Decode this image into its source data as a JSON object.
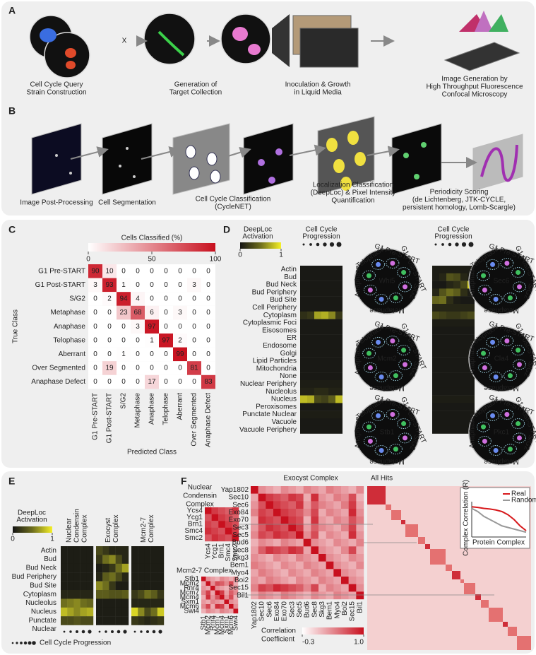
{
  "panel_a": {
    "label": "A",
    "cross": "X",
    "steps": [
      [
        "Cell Cycle Query",
        "Strain Construction"
      ],
      [
        "Generation of",
        "Target Collection"
      ],
      [
        "Inoculation & Growth",
        "in Liquid Media"
      ],
      [
        "Image Generation by",
        "High Throughput Fluorescence",
        "Confocal Microscopy"
      ]
    ]
  },
  "panel_b": {
    "label": "B",
    "steps": [
      [
        "Image Post-Processing"
      ],
      [
        "Cell Segmentation"
      ],
      [
        "Cell Cycle Classification",
        "(CycleNET)"
      ],
      [
        "Localization Classification",
        "(DeepLoc) & Pixel Intensity",
        "Quantification"
      ],
      [
        "Periodicity Scoring",
        "(de Lichtenberg, JTK-CYCLE,",
        "persistent homology, Lomb-Scargle)"
      ]
    ]
  },
  "panel_c": {
    "label": "C",
    "colorbar_title": "Cells Classified (%)",
    "colorbar_ticks": [
      0,
      50,
      100
    ],
    "color_range": [
      0,
      100
    ],
    "y_label": "True Class",
    "x_label": "Predicted Class",
    "classes": [
      "G1 Pre-START",
      "G1 Post-START",
      "S/G2",
      "Metaphase",
      "Anaphase",
      "Telophase",
      "Aberrant",
      "Over Segmented",
      "Anaphase Defect"
    ],
    "matrix": [
      [
        90,
        10,
        0,
        0,
        0,
        0,
        0,
        0,
        0
      ],
      [
        3,
        93,
        1,
        0,
        0,
        0,
        0,
        3,
        0
      ],
      [
        0,
        2,
        94,
        4,
        0,
        0,
        0,
        0,
        0
      ],
      [
        0,
        0,
        23,
        68,
        6,
        0,
        3,
        0,
        0
      ],
      [
        0,
        0,
        0,
        3,
        97,
        0,
        0,
        0,
        0
      ],
      [
        0,
        0,
        0,
        0,
        1,
        97,
        2,
        0,
        0
      ],
      [
        0,
        0,
        1,
        0,
        0,
        0,
        99,
        0,
        0
      ],
      [
        0,
        19,
        0,
        0,
        0,
        0,
        0,
        81,
        0
      ],
      [
        0,
        0,
        0,
        0,
        17,
        0,
        0,
        0,
        83
      ]
    ]
  },
  "panel_d": {
    "label": "D",
    "colorbar_lines": [
      "DeepLoc",
      "Activation"
    ],
    "colorbar_ticks": [
      0,
      1
    ],
    "header_lines": [
      "Cell Cycle",
      "Progression"
    ],
    "localizations": [
      "Actin",
      "Bud",
      "Bud Neck",
      "Bud Periphery",
      "Bud Site",
      "Cell Periphery",
      "Cytoplasm",
      "Cytoplasmic Foci",
      "Eisosomes",
      "ER",
      "Endosome",
      "Golgi",
      "Lipid Particles",
      "Mitochondria",
      "None",
      "Nuclear Periphery",
      "Nucleolus",
      "Nucleus",
      "Peroxisomes",
      "Punctate Nuclear",
      "Vacuole",
      "Vacuole Periphery"
    ],
    "heatmaps": [
      [
        [
          0.03,
          0.03,
          0.03,
          0.03,
          0.03,
          0.03
        ],
        [
          0.03,
          0.03,
          0.03,
          0.03,
          0.03,
          0.03
        ],
        [
          0.03,
          0.03,
          0.03,
          0.03,
          0.03,
          0.03
        ],
        [
          0.03,
          0.03,
          0.03,
          0.03,
          0.03,
          0.03
        ],
        [
          0.03,
          0.03,
          0.03,
          0.03,
          0.03,
          0.03
        ],
        [
          0.03,
          0.03,
          0.03,
          0.03,
          0.03,
          0.03
        ],
        [
          0.15,
          0.2,
          0.7,
          0.75,
          0.6,
          0.2
        ],
        [
          0.03,
          0.03,
          0.03,
          0.03,
          0.03,
          0.03
        ],
        [
          0.03,
          0.03,
          0.03,
          0.03,
          0.03,
          0.03
        ],
        [
          0.03,
          0.03,
          0.03,
          0.03,
          0.03,
          0.03
        ],
        [
          0.03,
          0.03,
          0.03,
          0.03,
          0.03,
          0.03
        ],
        [
          0.03,
          0.03,
          0.03,
          0.03,
          0.03,
          0.03
        ],
        [
          0.03,
          0.03,
          0.03,
          0.03,
          0.03,
          0.03
        ],
        [
          0.03,
          0.03,
          0.03,
          0.03,
          0.03,
          0.03
        ],
        [
          0.03,
          0.03,
          0.03,
          0.03,
          0.03,
          0.03
        ],
        [
          0.05,
          0.05,
          0.05,
          0.05,
          0.05,
          0.05
        ],
        [
          0.08,
          0.08,
          0.12,
          0.12,
          0.08,
          0.08
        ],
        [
          0.8,
          0.75,
          0.3,
          0.25,
          0.4,
          0.8
        ],
        [
          0.03,
          0.03,
          0.03,
          0.03,
          0.03,
          0.03
        ],
        [
          0.05,
          0.05,
          0.05,
          0.05,
          0.05,
          0.05
        ],
        [
          0.03,
          0.03,
          0.03,
          0.03,
          0.03,
          0.03
        ],
        [
          0.03,
          0.03,
          0.03,
          0.03,
          0.03,
          0.03
        ]
      ],
      [
        [
          0.05,
          0.05,
          0.05,
          0.05,
          0.05,
          0.05
        ],
        [
          0.05,
          0.1,
          0.35,
          0.3,
          0.1,
          0.05
        ],
        [
          0.03,
          0.03,
          0.1,
          0.15,
          0.3,
          0.9
        ],
        [
          0.1,
          0.35,
          0.5,
          0.4,
          0.15,
          0.05
        ],
        [
          0.45,
          0.5,
          0.15,
          0.05,
          0.03,
          0.03
        ],
        [
          0.1,
          0.1,
          0.1,
          0.1,
          0.1,
          0.1
        ],
        [
          0.3,
          0.25,
          0.2,
          0.2,
          0.25,
          0.3
        ],
        [
          0.05,
          0.05,
          0.05,
          0.05,
          0.05,
          0.05
        ],
        [
          0.03,
          0.03,
          0.03,
          0.03,
          0.03,
          0.03
        ],
        [
          0.03,
          0.03,
          0.03,
          0.03,
          0.03,
          0.03
        ],
        [
          0.03,
          0.03,
          0.03,
          0.03,
          0.03,
          0.03
        ],
        [
          0.03,
          0.03,
          0.03,
          0.03,
          0.03,
          0.03
        ],
        [
          0.03,
          0.03,
          0.03,
          0.03,
          0.03,
          0.03
        ],
        [
          0.03,
          0.03,
          0.03,
          0.03,
          0.03,
          0.03
        ],
        [
          0.03,
          0.03,
          0.03,
          0.03,
          0.03,
          0.03
        ],
        [
          0.03,
          0.03,
          0.03,
          0.03,
          0.03,
          0.03
        ],
        [
          0.03,
          0.03,
          0.03,
          0.03,
          0.03,
          0.03
        ],
        [
          0.05,
          0.05,
          0.05,
          0.05,
          0.05,
          0.05
        ],
        [
          0.03,
          0.03,
          0.03,
          0.03,
          0.03,
          0.03
        ],
        [
          0.03,
          0.03,
          0.03,
          0.03,
          0.03,
          0.03
        ],
        [
          0.03,
          0.03,
          0.03,
          0.03,
          0.03,
          0.03
        ],
        [
          0.03,
          0.03,
          0.03,
          0.03,
          0.03,
          0.03
        ]
      ]
    ],
    "phases": [
      "G1 Pre-START",
      "G1 Post-START",
      "S/G2",
      "Metaphase",
      "Anaphase",
      "Telophase"
    ],
    "proteins": [
      [
        "Whi5",
        "Mcm2",
        "Stb1"
      ],
      [
        "Sec6",
        "Cla4",
        "Pkc1"
      ]
    ]
  },
  "panel_e": {
    "label": "E",
    "colorbar_lines": [
      "DeepLoc",
      "Activation"
    ],
    "colorbar_ticks": [
      0,
      1
    ],
    "progression_label": "Cell Cycle Progression",
    "localizations": [
      [
        "Actin"
      ],
      [
        "Bud"
      ],
      [
        "Bud Neck"
      ],
      [
        "Bud Periphery"
      ],
      [
        "Bud Site"
      ],
      [
        "Cytoplasm"
      ],
      [
        "Nucleolus"
      ],
      [
        "Nucleus"
      ],
      [
        "Punctate",
        "Nuclear"
      ]
    ],
    "complexes": [
      {
        "name_lines": [
          "Nuclear",
          "Condensin",
          "Complex"
        ],
        "values": [
          [
            0.05,
            0.05,
            0.05,
            0.05,
            0.05
          ],
          [
            0.05,
            0.05,
            0.05,
            0.05,
            0.05
          ],
          [
            0.05,
            0.05,
            0.05,
            0.05,
            0.05
          ],
          [
            0.05,
            0.05,
            0.05,
            0.05,
            0.05
          ],
          [
            0.05,
            0.05,
            0.05,
            0.05,
            0.05
          ],
          [
            0.1,
            0.1,
            0.1,
            0.1,
            0.1
          ],
          [
            0.5,
            0.55,
            0.6,
            0.5,
            0.45
          ],
          [
            0.8,
            0.7,
            0.6,
            0.7,
            0.75
          ],
          [
            0.3,
            0.3,
            0.35,
            0.3,
            0.3
          ]
        ]
      },
      {
        "name_lines": [
          "Exocyst",
          "Complex"
        ],
        "values": [
          [
            0.3,
            0.2,
            0.1,
            0.1,
            0.1
          ],
          [
            0.2,
            0.5,
            0.6,
            0.3,
            0.1
          ],
          [
            0.05,
            0.1,
            0.2,
            0.5,
            0.7
          ],
          [
            0.1,
            0.4,
            0.5,
            0.3,
            0.1
          ],
          [
            0.6,
            0.5,
            0.2,
            0.05,
            0.05
          ],
          [
            0.4,
            0.4,
            0.35,
            0.35,
            0.4
          ],
          [
            0.05,
            0.05,
            0.05,
            0.05,
            0.05
          ],
          [
            0.05,
            0.05,
            0.05,
            0.05,
            0.05
          ],
          [
            0.05,
            0.05,
            0.05,
            0.05,
            0.05
          ]
        ]
      },
      {
        "name_lines": [
          "Mcm2-7",
          "Complex"
        ],
        "values": [
          [
            0.05,
            0.05,
            0.05,
            0.05,
            0.05
          ],
          [
            0.05,
            0.05,
            0.05,
            0.05,
            0.05
          ],
          [
            0.05,
            0.05,
            0.05,
            0.05,
            0.05
          ],
          [
            0.05,
            0.05,
            0.05,
            0.05,
            0.05
          ],
          [
            0.05,
            0.05,
            0.05,
            0.05,
            0.05
          ],
          [
            0.2,
            0.3,
            0.5,
            0.4,
            0.2
          ],
          [
            0.1,
            0.1,
            0.1,
            0.1,
            0.1
          ],
          [
            0.9,
            0.6,
            0.3,
            0.5,
            0.85
          ],
          [
            0.2,
            0.15,
            0.1,
            0.15,
            0.2
          ]
        ]
      }
    ]
  },
  "panel_f": {
    "label": "F",
    "condensin": {
      "title_lines": [
        "Nuclear",
        "Condensin",
        "Complex"
      ],
      "genes": [
        {
          "name": "Ycs4",
          "member": true
        },
        {
          "name": "Ycg1",
          "member": true
        },
        {
          "name": "Brn1",
          "member": true
        },
        {
          "name": "Smc4",
          "member": true
        },
        {
          "name": "Smc2",
          "member": true
        }
      ]
    },
    "mcm": {
      "title_lines": [
        "Mcm2-7 Complex"
      ],
      "genes": [
        {
          "name": "Stb1",
          "member": false
        },
        {
          "name": "Mcm2",
          "member": true
        },
        {
          "name": "Rnr4",
          "member": false
        },
        {
          "name": "Mcm7",
          "member": true
        },
        {
          "name": "Mcm4",
          "member": true
        },
        {
          "name": "Sxm1",
          "member": false
        },
        {
          "name": "Mcm6",
          "member": true
        },
        {
          "name": "Swi4",
          "member": false
        }
      ]
    },
    "exocyst": {
      "title_lines": [
        "Exocyst Complex"
      ],
      "genes": [
        {
          "name": "Yap1802",
          "member": false
        },
        {
          "name": "Sec10",
          "member": true
        },
        {
          "name": "Sec6",
          "member": true
        },
        {
          "name": "Exo84",
          "member": true
        },
        {
          "name": "Exo70",
          "member": true
        },
        {
          "name": "Sec3",
          "member": true
        },
        {
          "name": "Sec5",
          "member": true
        },
        {
          "name": "Bud6",
          "member": false
        },
        {
          "name": "Sec8",
          "member": true
        },
        {
          "name": "Skg3",
          "member": false
        },
        {
          "name": "Bem1",
          "member": false
        },
        {
          "name": "Myo4",
          "member": false
        },
        {
          "name": "Boi2",
          "member": false
        },
        {
          "name": "Sec15",
          "member": true
        },
        {
          "name": "Bil1",
          "member": false
        }
      ]
    },
    "all_hits": {
      "title": "All Hits",
      "inset": {
        "type": "line",
        "x_label": "Protein Complex",
        "y_label": "Complex Correlation (R)",
        "ylim": [
          0,
          1
        ],
        "series": [
          {
            "name": "Real",
            "color": "#d7191c",
            "values": [
              0.95,
              0.93,
              0.9,
              0.88,
              0.85,
              0.8,
              0.7,
              0.55,
              0.35,
              0.2
            ]
          },
          {
            "name": "Random",
            "color": "#999999",
            "values": [
              0.9,
              0.8,
              0.65,
              0.55,
              0.45,
              0.35,
              0.3,
              0.25,
              0.2,
              0.15
            ]
          }
        ]
      }
    },
    "colorbar": {
      "title_lines": [
        "Correlation",
        "Coefficient"
      ],
      "range": [
        -0.3,
        1
      ],
      "ticks": [
        -0.3,
        {
          "value": 1,
          "label": "1.0"
        }
      ]
    }
  }
}
